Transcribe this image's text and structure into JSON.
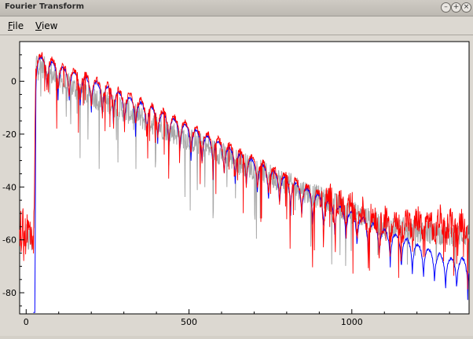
{
  "window": {
    "title": "Fourier Transform",
    "buttons": {
      "minimize_icon": "circle-minus",
      "maximize_icon": "circle-plus",
      "close_icon": "circle-x"
    }
  },
  "menu": {
    "items": [
      {
        "label": "File"
      },
      {
        "label": "View"
      }
    ]
  },
  "chart_data": {
    "type": "line",
    "title": "",
    "xlabel": "",
    "ylabel": "",
    "xlim": [
      -20,
      1360
    ],
    "ylim": [
      -88,
      15
    ],
    "x_ticks": [
      0,
      500,
      1000
    ],
    "y_ticks": [
      0,
      -20,
      -40,
      -60,
      -80
    ],
    "grid": false,
    "legend": "none",
    "colors": {
      "red": "#ff0000",
      "blue": "#0000ff",
      "gray": "#a8a8a8",
      "axes": "#000000",
      "plot_bg": "#ffffff"
    },
    "series": [
      {
        "color": "#a8a8a8",
        "description_values": {
          "x": [
            0,
            24,
            30,
            100,
            300,
            500,
            700,
            900,
            1100,
            1300
          ],
          "y": [
            -60,
            -60,
            8,
            0,
            -11,
            -22,
            -33,
            -44,
            -55,
            -58
          ]
        }
      },
      {
        "color": "#0000ff",
        "description_values": {
          "x": [
            22,
            27,
            30,
            100,
            300,
            500,
            700,
            900,
            1100,
            1300
          ],
          "y": [
            -88,
            -88,
            10,
            6,
            -5,
            -17,
            -30,
            -43,
            -56,
            -67
          ]
        }
      },
      {
        "color": "#ff0000",
        "description_values": {
          "x": [
            -20,
            0,
            24,
            30,
            100,
            300,
            500,
            700,
            900,
            1100,
            1300
          ],
          "y": [
            -57,
            -57,
            -57,
            11,
            7,
            -4,
            -16,
            -29,
            -42,
            -52,
            -52
          ]
        }
      }
    ]
  }
}
